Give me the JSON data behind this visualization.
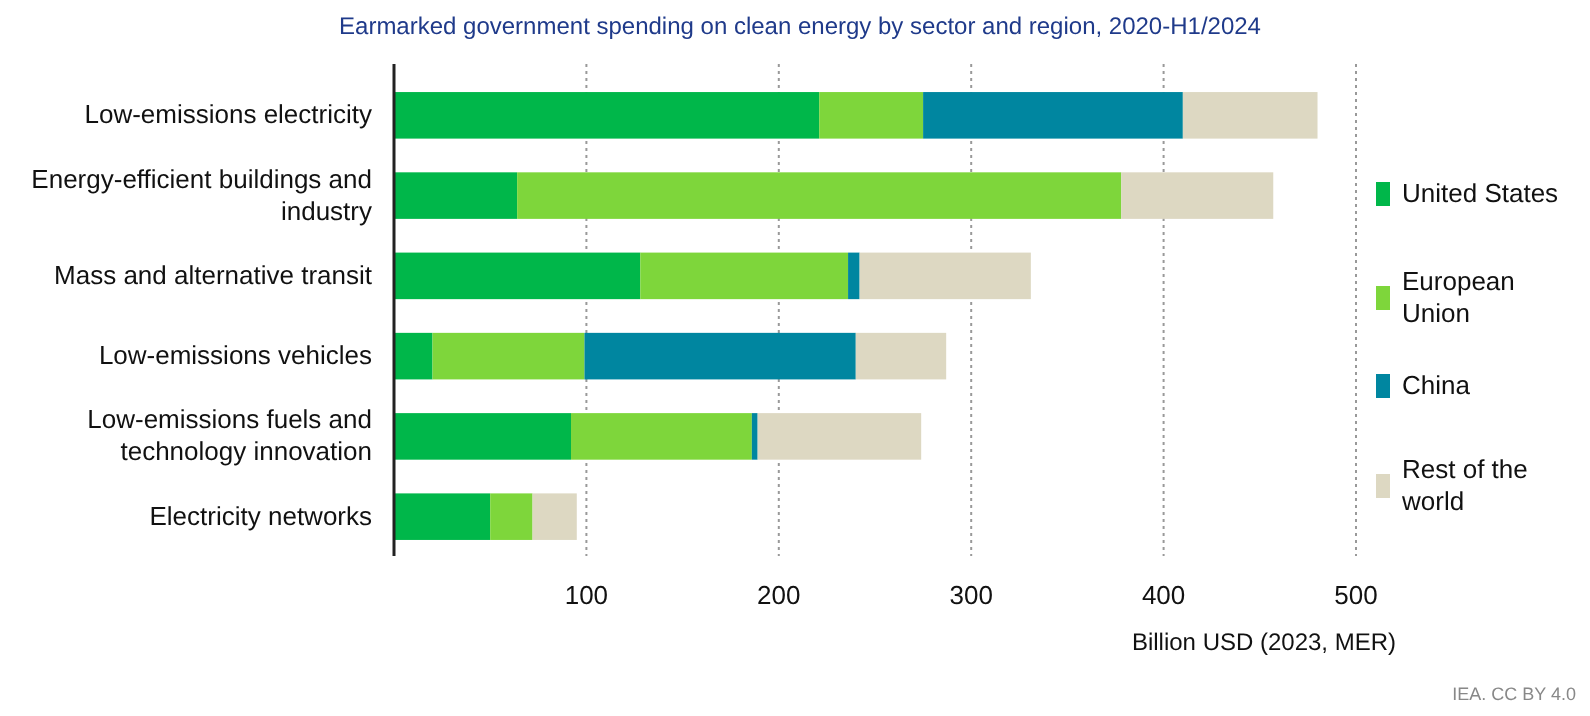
{
  "chart_data": {
    "type": "bar",
    "orientation": "horizontal",
    "stacked": true,
    "title": "Earmarked government spending on clean energy by sector and region, 2020-H1/2024",
    "categories": [
      "Low-emissions electricity",
      "Energy-efficient buildings and industry",
      "Mass and alternative transit",
      "Low-emissions vehicles",
      "Low-emissions fuels and technology innovation",
      "Electricity networks"
    ],
    "series": [
      {
        "name": "United States",
        "color": "#00b74a",
        "values": [
          221,
          64,
          128,
          20,
          92,
          50
        ]
      },
      {
        "name": "European Union",
        "color": "#7ed63b",
        "values": [
          54,
          314,
          108,
          79,
          94,
          22
        ]
      },
      {
        "name": "China",
        "color": "#0086a0",
        "values": [
          135,
          0,
          6,
          141,
          3,
          0
        ]
      },
      {
        "name": "Rest of the world",
        "color": "#ddd8c2",
        "values": [
          70,
          79,
          89,
          47,
          85,
          23
        ]
      }
    ],
    "xlim": [
      0,
      500
    ],
    "xticks": [
      100,
      200,
      300,
      400,
      500
    ],
    "xlabel": "Billion USD (2023, MER)",
    "grid": "x",
    "legend": "right",
    "annotations": [
      "IEA. CC BY 4.0"
    ]
  }
}
